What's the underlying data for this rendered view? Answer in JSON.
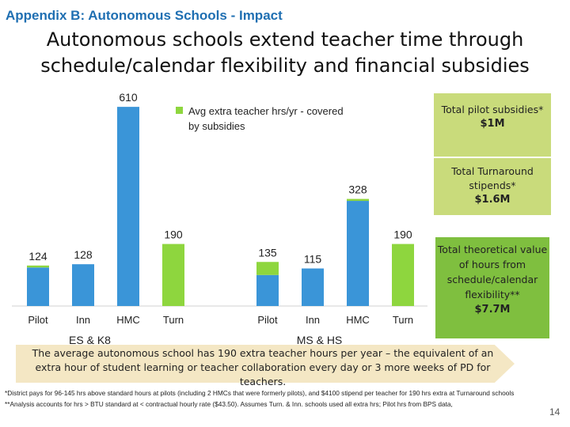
{
  "header": {
    "section_title": "Appendix B: Autonomous Schools - Impact",
    "title": "Autonomous schools extend teacher time through schedule/calendar flexibility and financial subsidies"
  },
  "chart_data": {
    "type": "bar",
    "legend": {
      "label": "Avg extra teacher hrs/yr - covered by subsidies",
      "color": "#8ed63e",
      "position": "top-right"
    },
    "groups": [
      {
        "label": "ES & K8",
        "categories": [
          "Pilot",
          "Inn",
          "HMC",
          "Turn"
        ],
        "values": [
          124,
          128,
          610,
          190
        ],
        "subsidy_covered": [
          6,
          0,
          0,
          190
        ]
      },
      {
        "label": "MS & HS",
        "categories": [
          "Pilot",
          "Inn",
          "HMC",
          "Turn"
        ],
        "values": [
          135,
          115,
          328,
          190
        ],
        "subsidy_covered": [
          40,
          0,
          6,
          190
        ]
      }
    ],
    "ylim": [
      0,
      620
    ],
    "colors": {
      "base": "#3a95d8",
      "subsidy": "#8ed63e"
    }
  },
  "callouts": {
    "pilot": {
      "label": "Total pilot subsidies*",
      "value": "$1M"
    },
    "turnaround": {
      "label": "Total Turnaround stipends*",
      "value": "$1.6M"
    },
    "theoretical": {
      "label": "Total theoretical value of hours from schedule/calendar flexibility**",
      "value": "$7.7M"
    }
  },
  "banner": {
    "text": "The average autonomous school has 190 extra teacher hours per year – the equivalent of an extra hour of student learning or teacher collaboration every day or 3 more weeks of PD for teachers."
  },
  "footnotes": {
    "note1": "*District pays for 96-145 hrs above standard hours at pilots (including 2 HMCs that were formerly pilots), and $4100 stipend per teacher for 190 hrs extra at Turnaround schools",
    "note2": "**Analysis accounts for hrs > BTU standard at < contractual hourly rate ($43.50). Assumes Turn. & Inn. schools used all extra hrs; Pilot hrs from BPS data,"
  },
  "page_number": "14"
}
